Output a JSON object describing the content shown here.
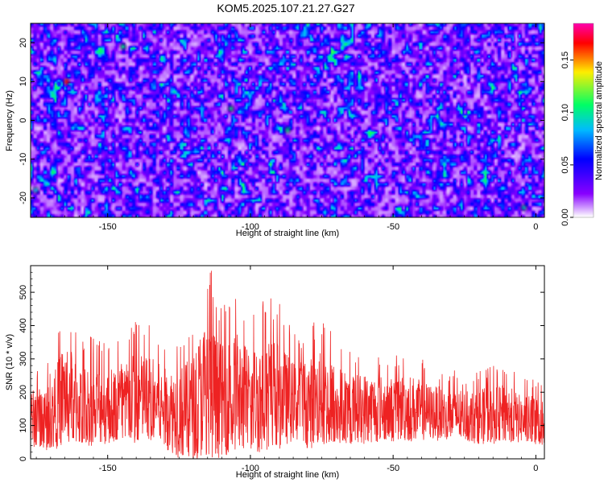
{
  "title": "KOM5.2025.107.21.27.G27",
  "chart_data": [
    {
      "type": "heatmap",
      "xlabel": "Height of straight line (km)",
      "ylabel": "Frequency (Hz)",
      "xlim": [
        -177,
        3
      ],
      "ylim": [
        -25,
        25
      ],
      "xticks": [
        -150,
        -100,
        -50,
        0
      ],
      "yticks": [
        -20,
        -10,
        0,
        10,
        20
      ],
      "colorbar": {
        "label": "Normalized spectral amplitude",
        "range": [
          0.0,
          0.185
        ],
        "ticks": [
          0.0,
          0.05,
          0.1,
          0.15
        ],
        "tick_labels": [
          "0.00",
          "0.05",
          "0.10",
          "0.15"
        ],
        "colors": [
          "#ffffff",
          "#8800ff",
          "#0000ff",
          "#00bbff",
          "#00ff66",
          "#ffee00",
          "#ff0000",
          "#ff00aa"
        ]
      },
      "grid": false
    },
    {
      "type": "line",
      "xlabel": "Height of straight line (km)",
      "ylabel": "SNR (10 * v/v)",
      "xlim": [
        -177,
        3
      ],
      "ylim": [
        0,
        580
      ],
      "xticks": [
        -150,
        -100,
        -50,
        0
      ],
      "yticks": [
        0,
        100,
        200,
        300,
        400,
        500
      ],
      "series": [
        {
          "color": "#ee2222",
          "profile": [
            {
              "x": -177,
              "low": 40,
              "high": 270
            },
            {
              "x": -170,
              "low": 30,
              "high": 300
            },
            {
              "x": -165,
              "low": 50,
              "high": 480
            },
            {
              "x": -160,
              "low": 40,
              "high": 380
            },
            {
              "x": -155,
              "low": 45,
              "high": 370
            },
            {
              "x": -150,
              "low": 50,
              "high": 350
            },
            {
              "x": -145,
              "low": 50,
              "high": 400
            },
            {
              "x": -140,
              "low": 45,
              "high": 420
            },
            {
              "x": -135,
              "low": 55,
              "high": 410
            },
            {
              "x": -130,
              "low": 40,
              "high": 360
            },
            {
              "x": -125,
              "low": 10,
              "high": 380
            },
            {
              "x": -120,
              "low": 5,
              "high": 420
            },
            {
              "x": -117,
              "low": 10,
              "high": 560
            },
            {
              "x": -114,
              "low": 0,
              "high": 580
            },
            {
              "x": -110,
              "low": 20,
              "high": 460
            },
            {
              "x": -105,
              "low": 30,
              "high": 520
            },
            {
              "x": -100,
              "low": 30,
              "high": 440
            },
            {
              "x": -95,
              "low": 20,
              "high": 520
            },
            {
              "x": -90,
              "low": 40,
              "high": 470
            },
            {
              "x": -85,
              "low": 60,
              "high": 380
            },
            {
              "x": -80,
              "low": 40,
              "high": 400
            },
            {
              "x": -75,
              "low": 40,
              "high": 430
            },
            {
              "x": -70,
              "low": 45,
              "high": 380
            },
            {
              "x": -65,
              "low": 50,
              "high": 330
            },
            {
              "x": -60,
              "low": 50,
              "high": 340
            },
            {
              "x": -55,
              "low": 55,
              "high": 330
            },
            {
              "x": -50,
              "low": 55,
              "high": 320
            },
            {
              "x": -45,
              "low": 55,
              "high": 340
            },
            {
              "x": -40,
              "low": 60,
              "high": 300
            },
            {
              "x": -35,
              "low": 60,
              "high": 280
            },
            {
              "x": -30,
              "low": 55,
              "high": 270
            },
            {
              "x": -25,
              "low": 55,
              "high": 260
            },
            {
              "x": -20,
              "low": 50,
              "high": 270
            },
            {
              "x": -15,
              "low": 50,
              "high": 280
            },
            {
              "x": -10,
              "low": 50,
              "high": 290
            },
            {
              "x": -5,
              "low": 50,
              "high": 240
            },
            {
              "x": 0,
              "low": 40,
              "high": 250
            },
            {
              "x": 3,
              "low": 45,
              "high": 230
            }
          ]
        }
      ],
      "grid": false
    }
  ]
}
